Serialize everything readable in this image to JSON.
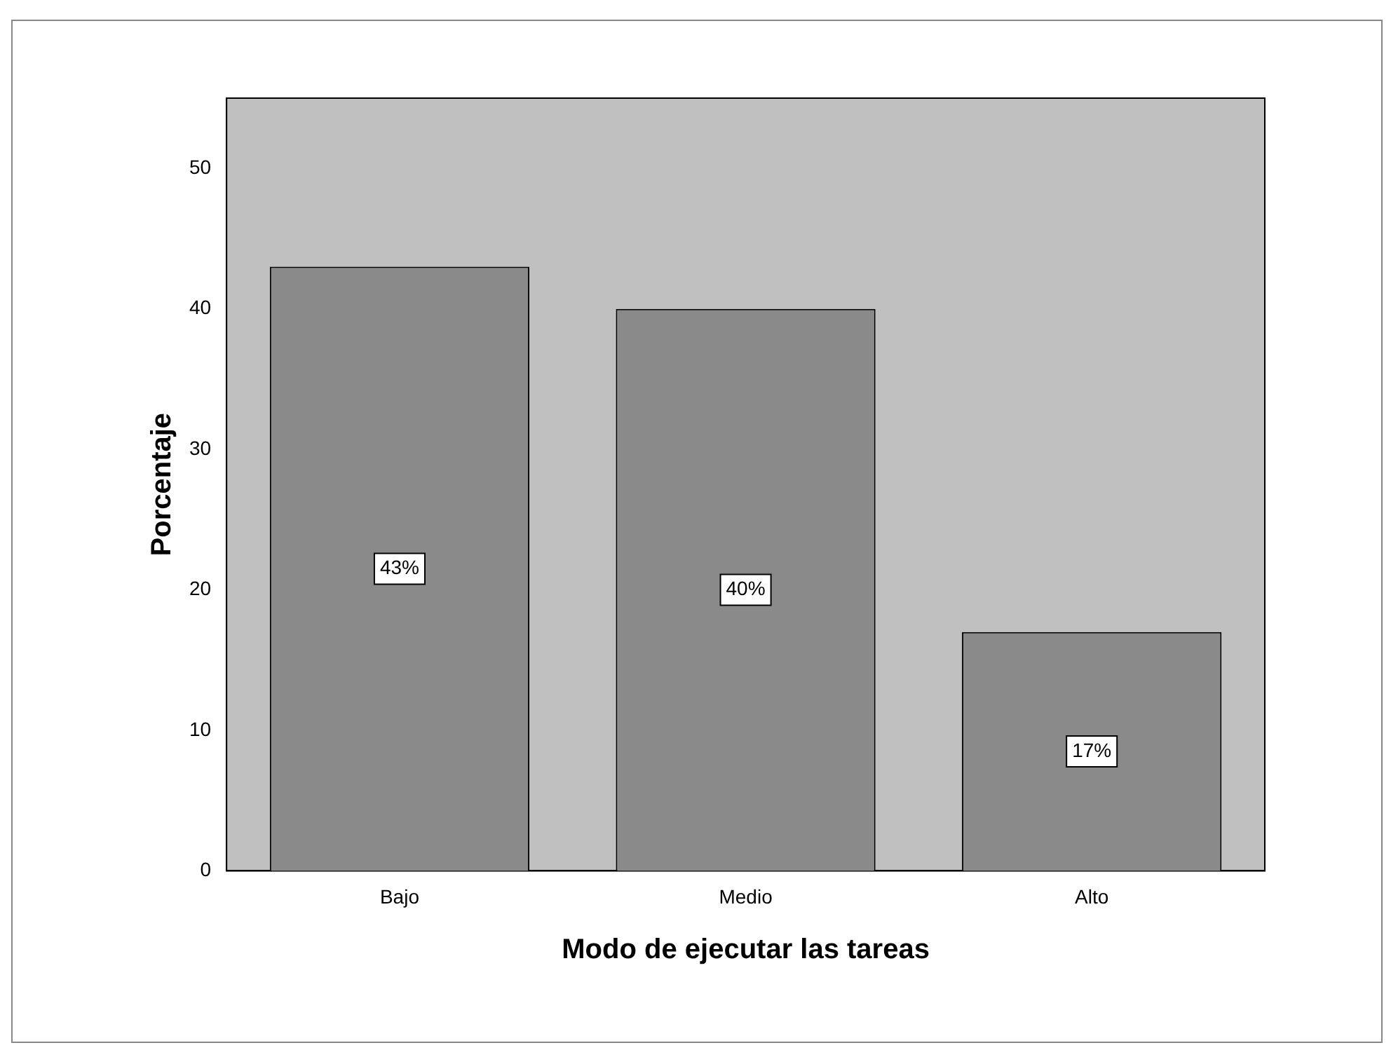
{
  "chart_data": {
    "type": "bar",
    "xlabel": "Modo de ejecutar las tareas",
    "ylabel": "Porcentaje",
    "categories": [
      "Bajo",
      "Medio",
      "Alto"
    ],
    "values": [
      43,
      40,
      17
    ],
    "color": "#8a8a8a",
    "value_labels": [
      "43%",
      "40%",
      "17%"
    ],
    "ylim": [
      0,
      55
    ],
    "yticks": [
      0,
      10,
      20,
      30,
      40,
      50
    ],
    "grid": false,
    "legend": false
  }
}
